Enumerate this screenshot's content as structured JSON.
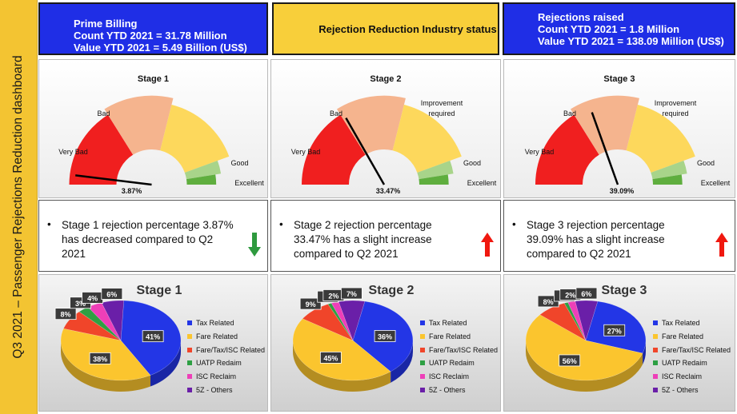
{
  "sidebar_title": "Q3 2021 – Passenger Rejections Reduction dashboard",
  "headers": {
    "left": [
      "Prime Billing",
      "Count YTD 2021 = 31.78 Million",
      "Value YTD 2021 = 5.49 Billion (US$)"
    ],
    "center": "Rejection Reduction Industry status",
    "right": [
      "Rejections raised",
      "Count YTD 2021 = 1.8 Million",
      "Value YTD 2021 = 138.09 Million (US$)"
    ]
  },
  "gauges": [
    {
      "title": "Stage 1",
      "value_label": "3.87%",
      "value": 3.87,
      "labels": {
        "very_bad": "Very Bad",
        "bad": "Bad",
        "good": "Good",
        "excellent": "Excellent"
      }
    },
    {
      "title": "Stage 2",
      "value_label": "33.47%",
      "value": 33.47,
      "labels": {
        "very_bad": "Very Bad",
        "bad": "Bad",
        "improvement": "Improvement required",
        "good": "Good",
        "excellent": "Excellent"
      }
    },
    {
      "title": "Stage 3",
      "value_label": "39.09%",
      "value": 39.09,
      "labels": {
        "very_bad": "Very Bad",
        "bad": "Bad",
        "improvement": "Improvement required",
        "good": "Good",
        "excellent": "Excellent"
      }
    }
  ],
  "gauge_colors": {
    "very_bad": "#f01f1f",
    "bad": "#f5b48e",
    "improvement": "#fdd85c",
    "good": "#a8d48a",
    "excellent": "#5fae3e"
  },
  "notes": [
    {
      "bullet": "•",
      "text": "Stage 1 rejection percentage 3.87% has decreased compared to Q2 2021",
      "trend": "down",
      "arrow_color": "#2e9a3e"
    },
    {
      "bullet": "•",
      "text": "Stage 2 rejection percentage 33.47% has a slight increase compared to Q2 2021",
      "trend": "up",
      "arrow_color": "#f0180f"
    },
    {
      "bullet": "•",
      "text": "Stage 3 rejection percentage 39.09% has a slight increase compared to Q2 2021",
      "trend": "up",
      "arrow_color": "#f0180f"
    }
  ],
  "chart_data": [
    {
      "type": "pie",
      "title": "Stage 1",
      "categories": [
        "Tax Related",
        "Fare Related",
        "Fare/Tax/ISC Related",
        "UATP Redaim",
        "ISC Reclaim",
        "5Z - Others"
      ],
      "values": [
        41,
        38,
        8,
        3,
        4,
        6
      ],
      "data_labels": [
        "41%",
        "38%",
        "8%",
        "3%",
        "4%",
        "6%"
      ]
    },
    {
      "type": "pie",
      "title": "Stage 2",
      "categories": [
        "Tax Related",
        "Fare Related",
        "Fare/Tax/ISC Related",
        "UATP Redaim",
        "ISC Reclaim",
        "5Z - Others"
      ],
      "values": [
        36,
        45,
        9,
        1,
        2,
        7
      ],
      "data_labels": [
        "36%",
        "45%",
        "9%",
        "1%",
        "2%",
        "7%"
      ]
    },
    {
      "type": "pie",
      "title": "Stage 3",
      "categories": [
        "Tax Related",
        "Fare Related",
        "Fare/Tax/ISC Related",
        "UATP Redaim",
        "ISC Reclaim",
        "5Z - Others"
      ],
      "values": [
        27,
        56,
        8,
        1,
        2,
        6
      ],
      "data_labels": [
        "27%",
        "56%",
        "8%",
        "1%",
        "2%",
        "6%"
      ]
    }
  ],
  "pie_colors": [
    "#2336e6",
    "#fbc52e",
    "#f0452a",
    "#2ea043",
    "#ee3fb8",
    "#6a1fa8"
  ]
}
